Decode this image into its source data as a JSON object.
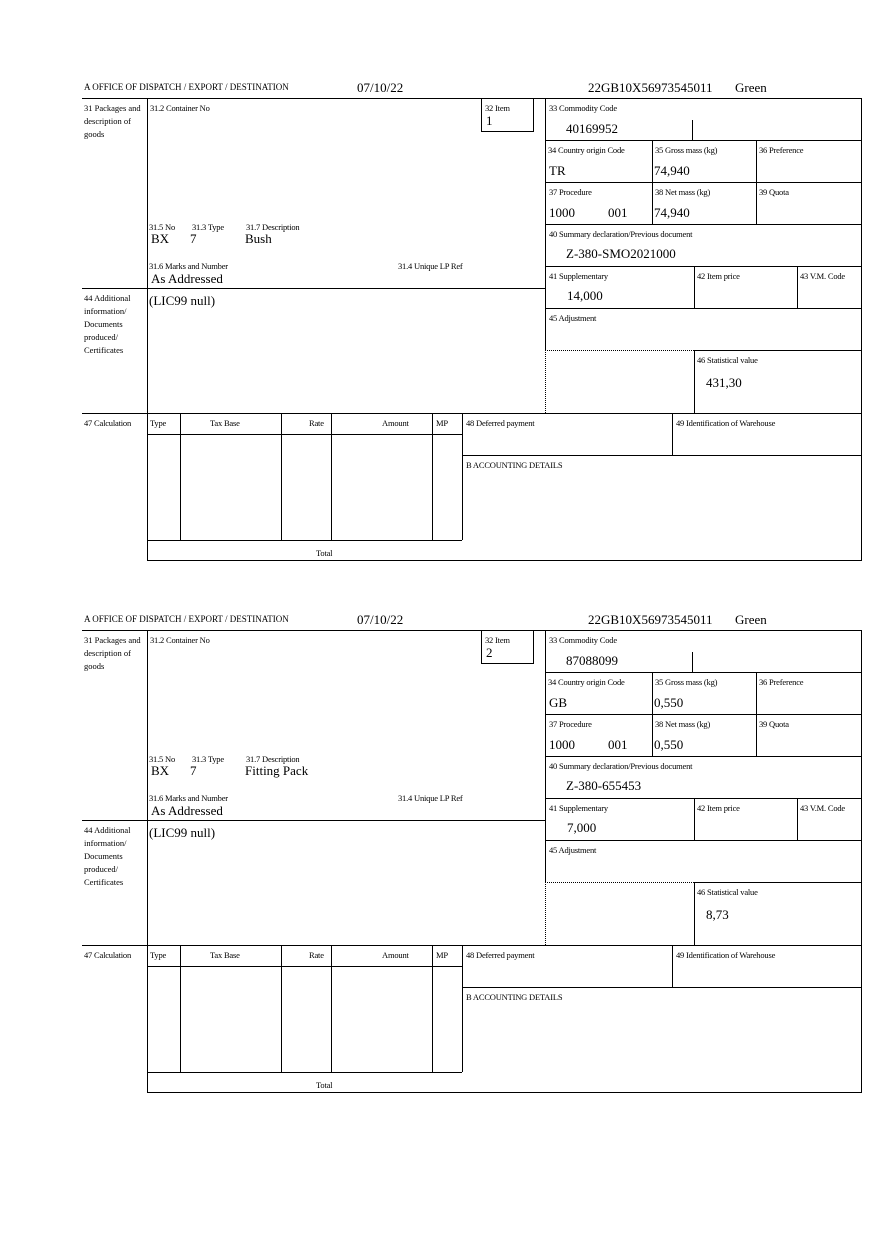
{
  "labels": {
    "office": "A  OFFICE OF DISPATCH / EXPORT / DESTINATION",
    "packages": "31 Packages and description of goods",
    "container_no": "31.2 Container No",
    "item": "32 Item",
    "commodity_code": "33 Commodity Code",
    "country_origin": "34 Country origin Code",
    "gross_mass": "35 Gross mass (kg)",
    "preference": "36 Preference",
    "procedure": "37 Procedure",
    "net_mass": "38 Net mass (kg)",
    "quota": "39 Quota",
    "summary_declaration": "40 Summary declaration/Previous document",
    "pkg_no": "31.5 No",
    "pkg_type": "31.3 Type",
    "pkg_description": "31.7 Description",
    "marks_numbers": "31.6 Marks and Number",
    "unique_lp_ref": "31.4 Unique LP Ref",
    "supplementary": "41 Supplementary",
    "item_price": "42 Item price",
    "vm_code": "43 V.M. Code",
    "additional_info": "44 Additional information/ Documents produced/ Certificates",
    "adjustment": "45 Adjustment",
    "statistical_value": "46 Statistical value",
    "calculation": "47 Calculation",
    "calc_columns": [
      "Type",
      "Tax Base",
      "Rate",
      "Amount",
      "MP"
    ],
    "total": "Total",
    "deferred_payment": "48 Deferred payment",
    "warehouse": "49 Identification of Warehouse",
    "accounting": "B ACCOUNTING DETAILS"
  },
  "forms": [
    {
      "date": "07/10/22",
      "reference": "22GB10X56973545011",
      "route": "Green",
      "item": "1",
      "commodity_code": "40169952",
      "country_origin": "TR",
      "gross_mass": "74,940",
      "procedure": "1000",
      "procedure_extra": "001",
      "net_mass": "74,940",
      "summary_declaration": "Z-380-SMO2021000",
      "pkg_no": "BX",
      "pkg_type": "7",
      "pkg_description": "Bush",
      "marks_numbers": "As Addressed",
      "supplementary": "14,000",
      "additional_info": "(LIC99 null)",
      "statistical_value": "431,30"
    },
    {
      "date": "07/10/22",
      "reference": "22GB10X56973545011",
      "route": "Green",
      "item": "2",
      "commodity_code": "87088099",
      "country_origin": "GB",
      "gross_mass": "0,550",
      "procedure": "1000",
      "procedure_extra": "001",
      "net_mass": "0,550",
      "summary_declaration": "Z-380-655453",
      "pkg_no": "BX",
      "pkg_type": "7",
      "pkg_description": "Fitting Pack",
      "marks_numbers": "As Addressed",
      "supplementary": "7,000",
      "additional_info": "(LIC99 null)",
      "statistical_value": "8,73"
    }
  ]
}
